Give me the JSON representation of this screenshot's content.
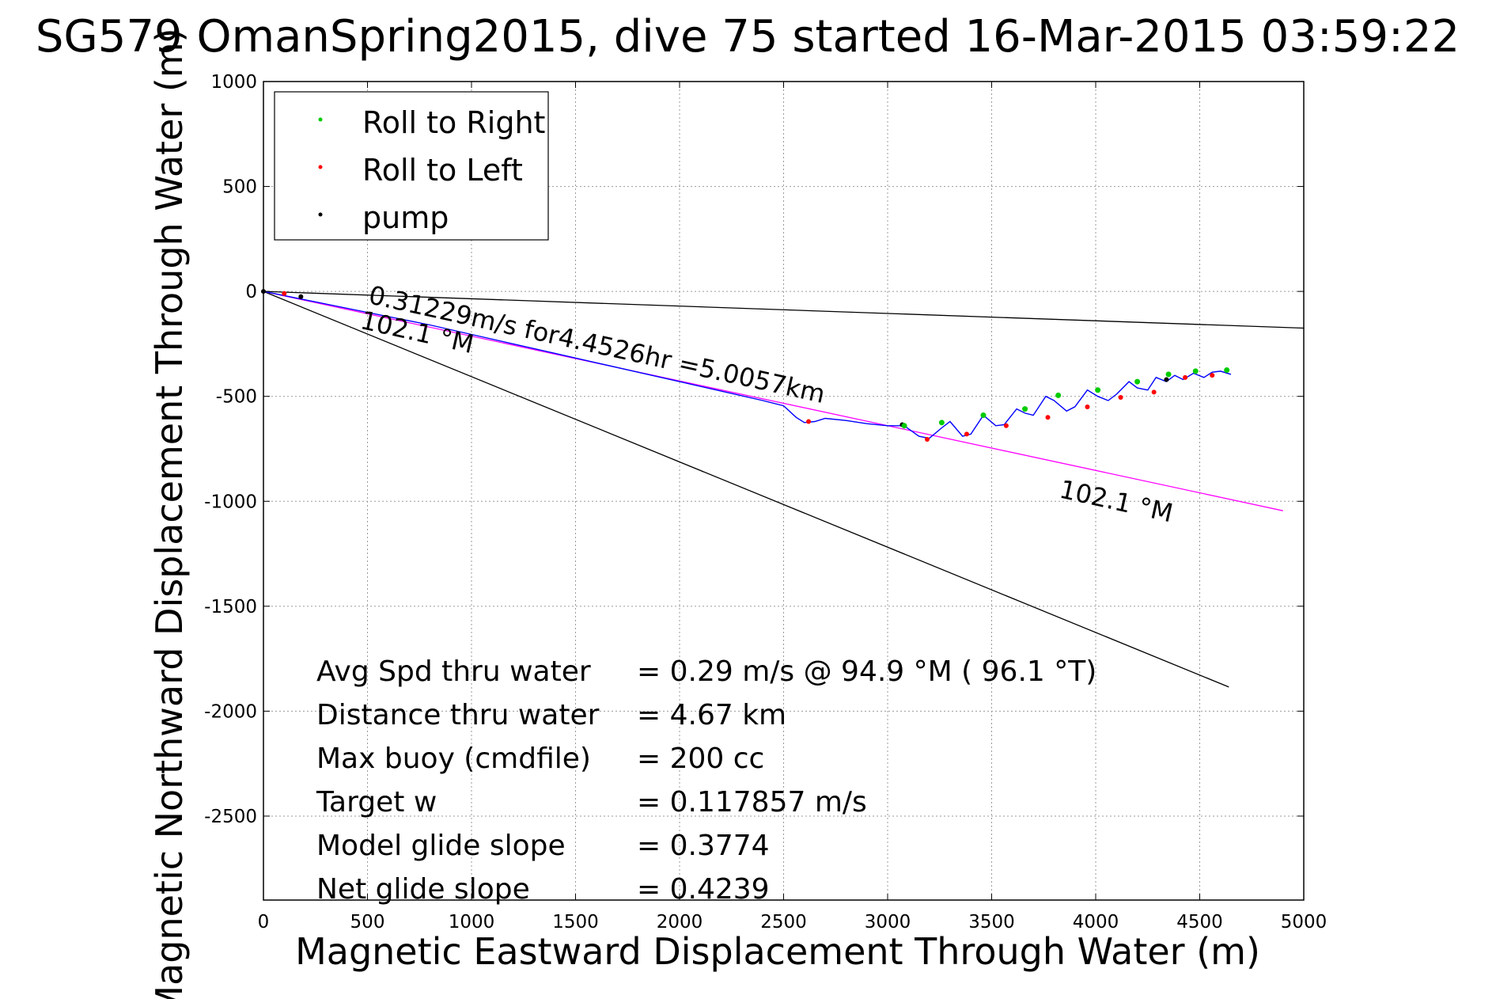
{
  "chart_data": {
    "type": "line",
    "title": "SG579 OmanSpring2015, dive 75 started 16-Mar-2015 03:59:22",
    "xlabel": "Magnetic Eastward Displacement Through Water (m)",
    "ylabel": "Magnetic Northward Displacement Through Water (m)",
    "xlim": [
      0,
      5000
    ],
    "ylim": [
      -2900,
      1000
    ],
    "xticks": [
      0,
      500,
      1000,
      1500,
      2000,
      2500,
      3000,
      3500,
      4000,
      4500,
      5000
    ],
    "yticks": [
      1000,
      500,
      0,
      -500,
      -1000,
      -1500,
      -2000,
      -2500
    ],
    "grid": true,
    "legend_position": "top-left",
    "legend": [
      {
        "label": "Roll to Right",
        "color": "#00cc00"
      },
      {
        "label": "Roll to Left",
        "color": "#ff0000"
      },
      {
        "label": "pump",
        "color": "#000000"
      }
    ],
    "track": {
      "name": "track",
      "color": "#0000ff",
      "x": [
        0,
        150,
        300,
        450,
        600,
        800,
        1000,
        1200,
        1400,
        1600,
        1800,
        2000,
        2200,
        2400,
        2500,
        2560,
        2600,
        2650,
        2700,
        2800,
        2900,
        3000,
        3080,
        3150,
        3200,
        3260,
        3300,
        3360,
        3400,
        3460,
        3520,
        3560,
        3620,
        3660,
        3700,
        3760,
        3800,
        3860,
        3900,
        3960,
        4010,
        4060,
        4100,
        4160,
        4200,
        4250,
        4290,
        4340,
        4380,
        4420,
        4470,
        4520,
        4560,
        4600,
        4650
      ],
      "y": [
        0,
        -30,
        -60,
        -90,
        -120,
        -160,
        -205,
        -250,
        -295,
        -340,
        -385,
        -430,
        -475,
        -520,
        -545,
        -600,
        -625,
        -620,
        -605,
        -615,
        -630,
        -640,
        -640,
        -690,
        -700,
        -650,
        -620,
        -690,
        -680,
        -590,
        -640,
        -635,
        -560,
        -580,
        -590,
        -500,
        -520,
        -570,
        -550,
        -470,
        -500,
        -520,
        -490,
        -430,
        -460,
        -470,
        -410,
        -430,
        -400,
        -420,
        -390,
        -410,
        -385,
        -380,
        -395
      ]
    },
    "roll_right_points": {
      "x": [
        3080,
        3260,
        3460,
        3660,
        3820,
        4010,
        4200,
        4350,
        4480,
        4630
      ],
      "y": [
        -640,
        -625,
        -590,
        -560,
        -495,
        -470,
        -430,
        -395,
        -380,
        -375
      ]
    },
    "roll_left_points": {
      "x": [
        100,
        2620,
        3190,
        3380,
        3570,
        3770,
        3960,
        4120,
        4280,
        4430,
        4560
      ],
      "y": [
        -10,
        -620,
        -705,
        -680,
        -640,
        -600,
        -550,
        -505,
        -480,
        -410,
        -400
      ]
    },
    "pump_points": {
      "x": [
        0,
        180,
        3070,
        4340
      ],
      "y": [
        0,
        -25,
        -635,
        -420
      ]
    },
    "ref_lines": [
      {
        "color": "#000000",
        "x": [
          0,
          5000
        ],
        "y": [
          0,
          -175
        ]
      },
      {
        "color": "#000000",
        "x": [
          0,
          4640
        ],
        "y": [
          0,
          -1885
        ]
      },
      {
        "color": "#ff00ff",
        "x": [
          0,
          4900
        ],
        "y": [
          0,
          -1045
        ]
      }
    ],
    "annotations": [
      {
        "text": "0.31229m/s for4.4526hr =5.0057km",
        "x": 500,
        "y": -55,
        "rotate": 12.4
      },
      {
        "text": "102.1 °M",
        "x": 460,
        "y": -175,
        "rotate": 12.6
      },
      {
        "text": "102.1 °M",
        "x": 3820,
        "y": -980,
        "rotate": 12.6
      }
    ],
    "stats": [
      {
        "label": "Avg Spd thru water",
        "value": "=  0.29 m/s @  94.9 °M ( 96.1 °T)"
      },
      {
        "label": "Distance thru water",
        "value": "=  4.67 km"
      },
      {
        "label": "Max buoy (cmdfile)",
        "value": "= 200 cc"
      },
      {
        "label": "Target w",
        "value": "= 0.117857 m/s"
      },
      {
        "label": "Model glide slope",
        "value": "= 0.3774"
      },
      {
        "label": "Net glide slope",
        "value": "= 0.4239"
      }
    ]
  }
}
